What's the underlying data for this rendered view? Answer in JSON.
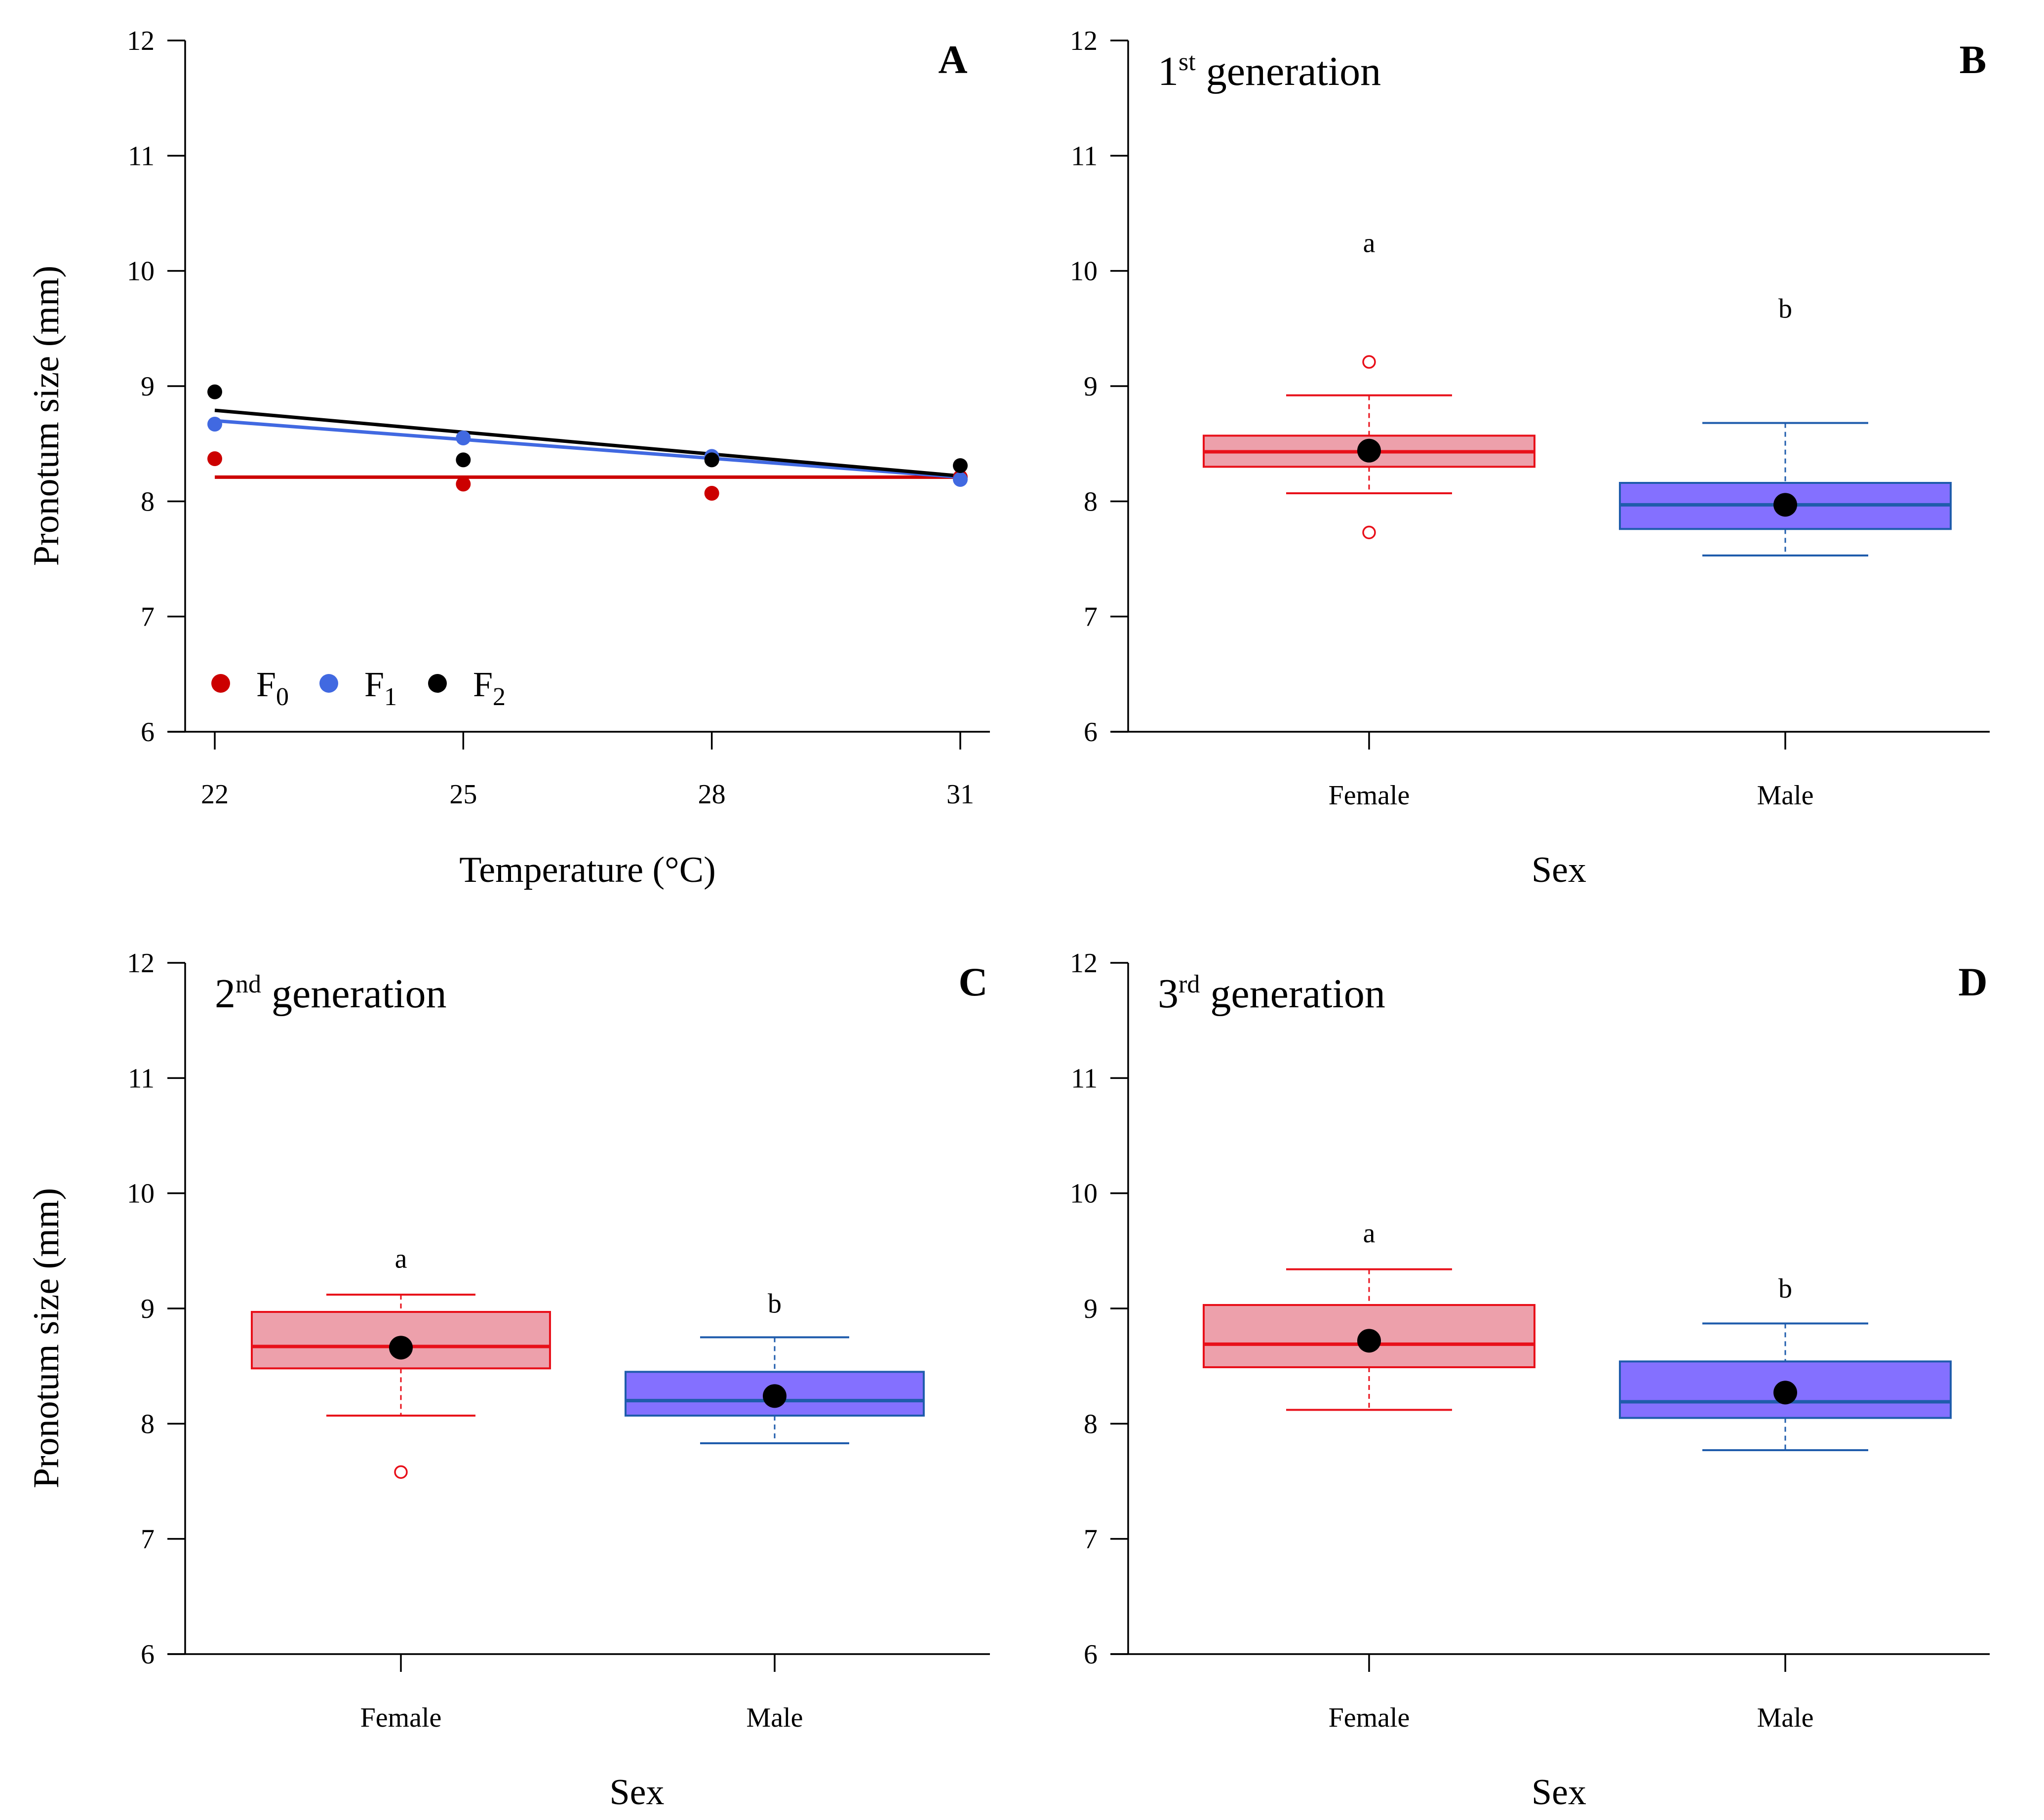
{
  "colors": {
    "F0": "#cc0000",
    "F1": "#4169e1",
    "F2": "#000000",
    "female_fill": "#eda0ab",
    "female_line": "#e8101a",
    "male_fill": "#8470ff",
    "male_line": "#1f5cac",
    "mean_point": "#000000"
  },
  "chart_data": [
    {
      "id": "A",
      "type": "scatter",
      "panel_letter": "A",
      "xlabel": "Temperature (°C)",
      "ylabel": "Pronotum size (mm)",
      "x_ticks": [
        22,
        25,
        28,
        31
      ],
      "x_tick_labels": [
        "22",
        "25",
        "28",
        "31"
      ],
      "ylim": [
        6,
        12
      ],
      "y_ticks": [
        6,
        7,
        8,
        9,
        10,
        11,
        12
      ],
      "y_tick_labels": [
        "6",
        "7",
        "8",
        "9",
        "10",
        "11",
        "12"
      ],
      "series": [
        {
          "name": "F0",
          "legend_main": "F",
          "legend_sub": "0",
          "color_key": "F0",
          "x": [
            22,
            25,
            28,
            31
          ],
          "values": [
            8.37,
            8.15,
            8.07,
            8.21
          ],
          "fit": {
            "x": [
              22,
              31
            ],
            "y": [
              8.21,
              8.21
            ]
          }
        },
        {
          "name": "F1",
          "legend_main": "F",
          "legend_sub": "1",
          "color_key": "F1",
          "x": [
            22,
            25,
            28,
            31
          ],
          "values": [
            8.67,
            8.55,
            8.39,
            8.19
          ],
          "fit": {
            "x": [
              22,
              31
            ],
            "y": [
              8.7,
              8.21
            ]
          }
        },
        {
          "name": "F2",
          "legend_main": "F",
          "legend_sub": "2",
          "color_key": "F2",
          "x": [
            22,
            25,
            28,
            31
          ],
          "values": [
            8.95,
            8.36,
            8.36,
            8.31
          ],
          "fit": {
            "x": [
              22,
              31
            ],
            "y": [
              8.79,
              8.22
            ]
          }
        }
      ]
    },
    {
      "id": "B",
      "type": "box",
      "panel_letter": "B",
      "title_main": "1",
      "title_sup": "st",
      "title_rest": " generation",
      "xlabel": "Sex",
      "ylim": [
        6,
        12
      ],
      "y_ticks": [
        6,
        7,
        8,
        9,
        10,
        11,
        12
      ],
      "y_tick_labels": [
        "6",
        "7",
        "8",
        "9",
        "10",
        "11",
        "12"
      ],
      "categories": [
        "Female",
        "Male"
      ],
      "boxes": [
        {
          "category": "Female",
          "color_key": "female",
          "q1": 8.3,
          "median": 8.43,
          "q3": 8.57,
          "whisker_low": 8.07,
          "whisker_high": 8.92,
          "mean": 8.44,
          "outliers": [
            9.21,
            7.73
          ],
          "letter": "a",
          "letter_y": 10.25
        },
        {
          "category": "Male",
          "color_key": "male",
          "q1": 7.76,
          "median": 7.97,
          "q3": 8.16,
          "whisker_low": 7.53,
          "whisker_high": 8.68,
          "mean": 7.97,
          "outliers": [],
          "letter": "b",
          "letter_y": 9.68
        }
      ]
    },
    {
      "id": "C",
      "type": "box",
      "panel_letter": "C",
      "title_main": "2",
      "title_sup": "nd",
      "title_rest": " generation",
      "xlabel": "Sex",
      "ylabel": "Pronotum size (mm)",
      "ylim": [
        6,
        12
      ],
      "y_ticks": [
        6,
        7,
        8,
        9,
        10,
        11,
        12
      ],
      "y_tick_labels": [
        "6",
        "7",
        "8",
        "9",
        "10",
        "11",
        "12"
      ],
      "categories": [
        "Female",
        "Male"
      ],
      "boxes": [
        {
          "category": "Female",
          "color_key": "female",
          "q1": 8.48,
          "median": 8.67,
          "q3": 8.97,
          "whisker_low": 8.07,
          "whisker_high": 9.12,
          "mean": 8.66,
          "outliers": [
            7.58
          ],
          "letter": "a",
          "letter_y": 9.44
        },
        {
          "category": "Male",
          "color_key": "male",
          "q1": 8.07,
          "median": 8.2,
          "q3": 8.45,
          "whisker_low": 7.83,
          "whisker_high": 8.75,
          "mean": 8.24,
          "outliers": [],
          "letter": "b",
          "letter_y": 9.05
        }
      ]
    },
    {
      "id": "D",
      "type": "box",
      "panel_letter": "D",
      "title_main": "3",
      "title_sup": "rd",
      "title_rest": " generation",
      "xlabel": "Sex",
      "ylim": [
        6,
        12
      ],
      "y_ticks": [
        6,
        7,
        8,
        9,
        10,
        11,
        12
      ],
      "y_tick_labels": [
        "6",
        "7",
        "8",
        "9",
        "10",
        "11",
        "12"
      ],
      "categories": [
        "Female",
        "Male"
      ],
      "boxes": [
        {
          "category": "Female",
          "color_key": "female",
          "q1": 8.49,
          "median": 8.69,
          "q3": 9.03,
          "whisker_low": 8.12,
          "whisker_high": 9.34,
          "mean": 8.72,
          "outliers": [],
          "letter": "a",
          "letter_y": 9.66
        },
        {
          "category": "Male",
          "color_key": "male",
          "q1": 8.05,
          "median": 8.19,
          "q3": 8.54,
          "whisker_low": 7.77,
          "whisker_high": 8.87,
          "mean": 8.27,
          "outliers": [],
          "letter": "b",
          "letter_y": 9.18
        }
      ]
    }
  ]
}
